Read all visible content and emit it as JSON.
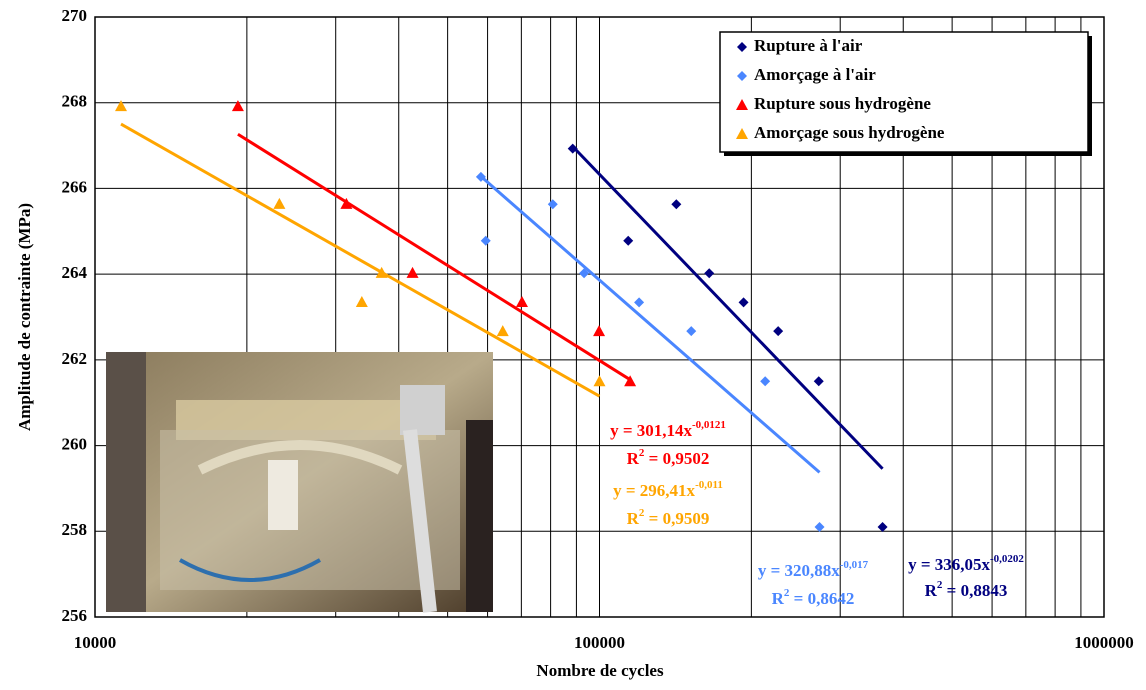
{
  "chart_data": {
    "type": "scatter",
    "x_label": "Nombre de cycles",
    "y_label": "Amplitude de contrainte (MPa)",
    "log_x": true,
    "grid": true,
    "legend": "top-right",
    "xlim": [
      10000,
      1000000
    ],
    "xticks": [
      10000,
      100000,
      1000000
    ],
    "ylim": [
      256,
      270
    ],
    "yticks": [
      256,
      258,
      260,
      262,
      264,
      266,
      268,
      270
    ],
    "series": [
      {
        "name": "Rupture à l'air",
        "color": "#000080",
        "marker": "diamond",
        "x": [
          88500,
          114000,
          142000,
          165000,
          193000,
          226000,
          272000,
          364000
        ],
        "values": [
          266.93,
          264.78,
          265.63,
          264.02,
          263.34,
          262.67,
          261.5,
          258.1
        ],
        "trend": {
          "coef": 336.05,
          "exp": -0.0202
        },
        "eq": [
          "y = 336,05x",
          "-0,0202"
        ],
        "r2": [
          "R",
          "2",
          " = 0,8843"
        ]
      },
      {
        "name": "Amorçage à l'air",
        "color": "#4a86ff",
        "marker": "diamond",
        "x": [
          58200,
          59500,
          80800,
          93200,
          119800,
          152000,
          213000,
          273000
        ],
        "values": [
          266.27,
          264.78,
          265.63,
          264.02,
          263.34,
          262.67,
          261.5,
          258.1
        ],
        "trend": {
          "coef": 320.88,
          "exp": -0.017
        },
        "eq": [
          "y = 320,88x",
          "-0,017"
        ],
        "r2": [
          "R",
          "2",
          " = 0,8642"
        ]
      },
      {
        "name": "Rupture sous hydrogène",
        "color": "#ff0000",
        "marker": "triangle",
        "x": [
          19200,
          31500,
          42600,
          70200,
          99800,
          115000
        ],
        "values": [
          267.92,
          265.64,
          264.03,
          263.35,
          262.67,
          261.5
        ],
        "trend": {
          "coef": 301.14,
          "exp": -0.0121
        },
        "eq": [
          "y = 301,14x",
          "-0,0121"
        ],
        "r2": [
          "R",
          "2",
          " = 0,9502"
        ]
      },
      {
        "name": "Amorçage sous hydrogène",
        "color": "#ffa500",
        "marker": "triangle",
        "x": [
          11260,
          23200,
          33800,
          37000,
          64300,
          100000
        ],
        "values": [
          267.92,
          265.64,
          263.35,
          264.03,
          262.67,
          261.5
        ],
        "trend": {
          "coef": 296.41,
          "exp": -0.011
        },
        "eq": [
          "y = 296,41x",
          "-0,011"
        ],
        "r2": [
          "R",
          "2",
          " = 0,9509"
        ]
      }
    ]
  }
}
